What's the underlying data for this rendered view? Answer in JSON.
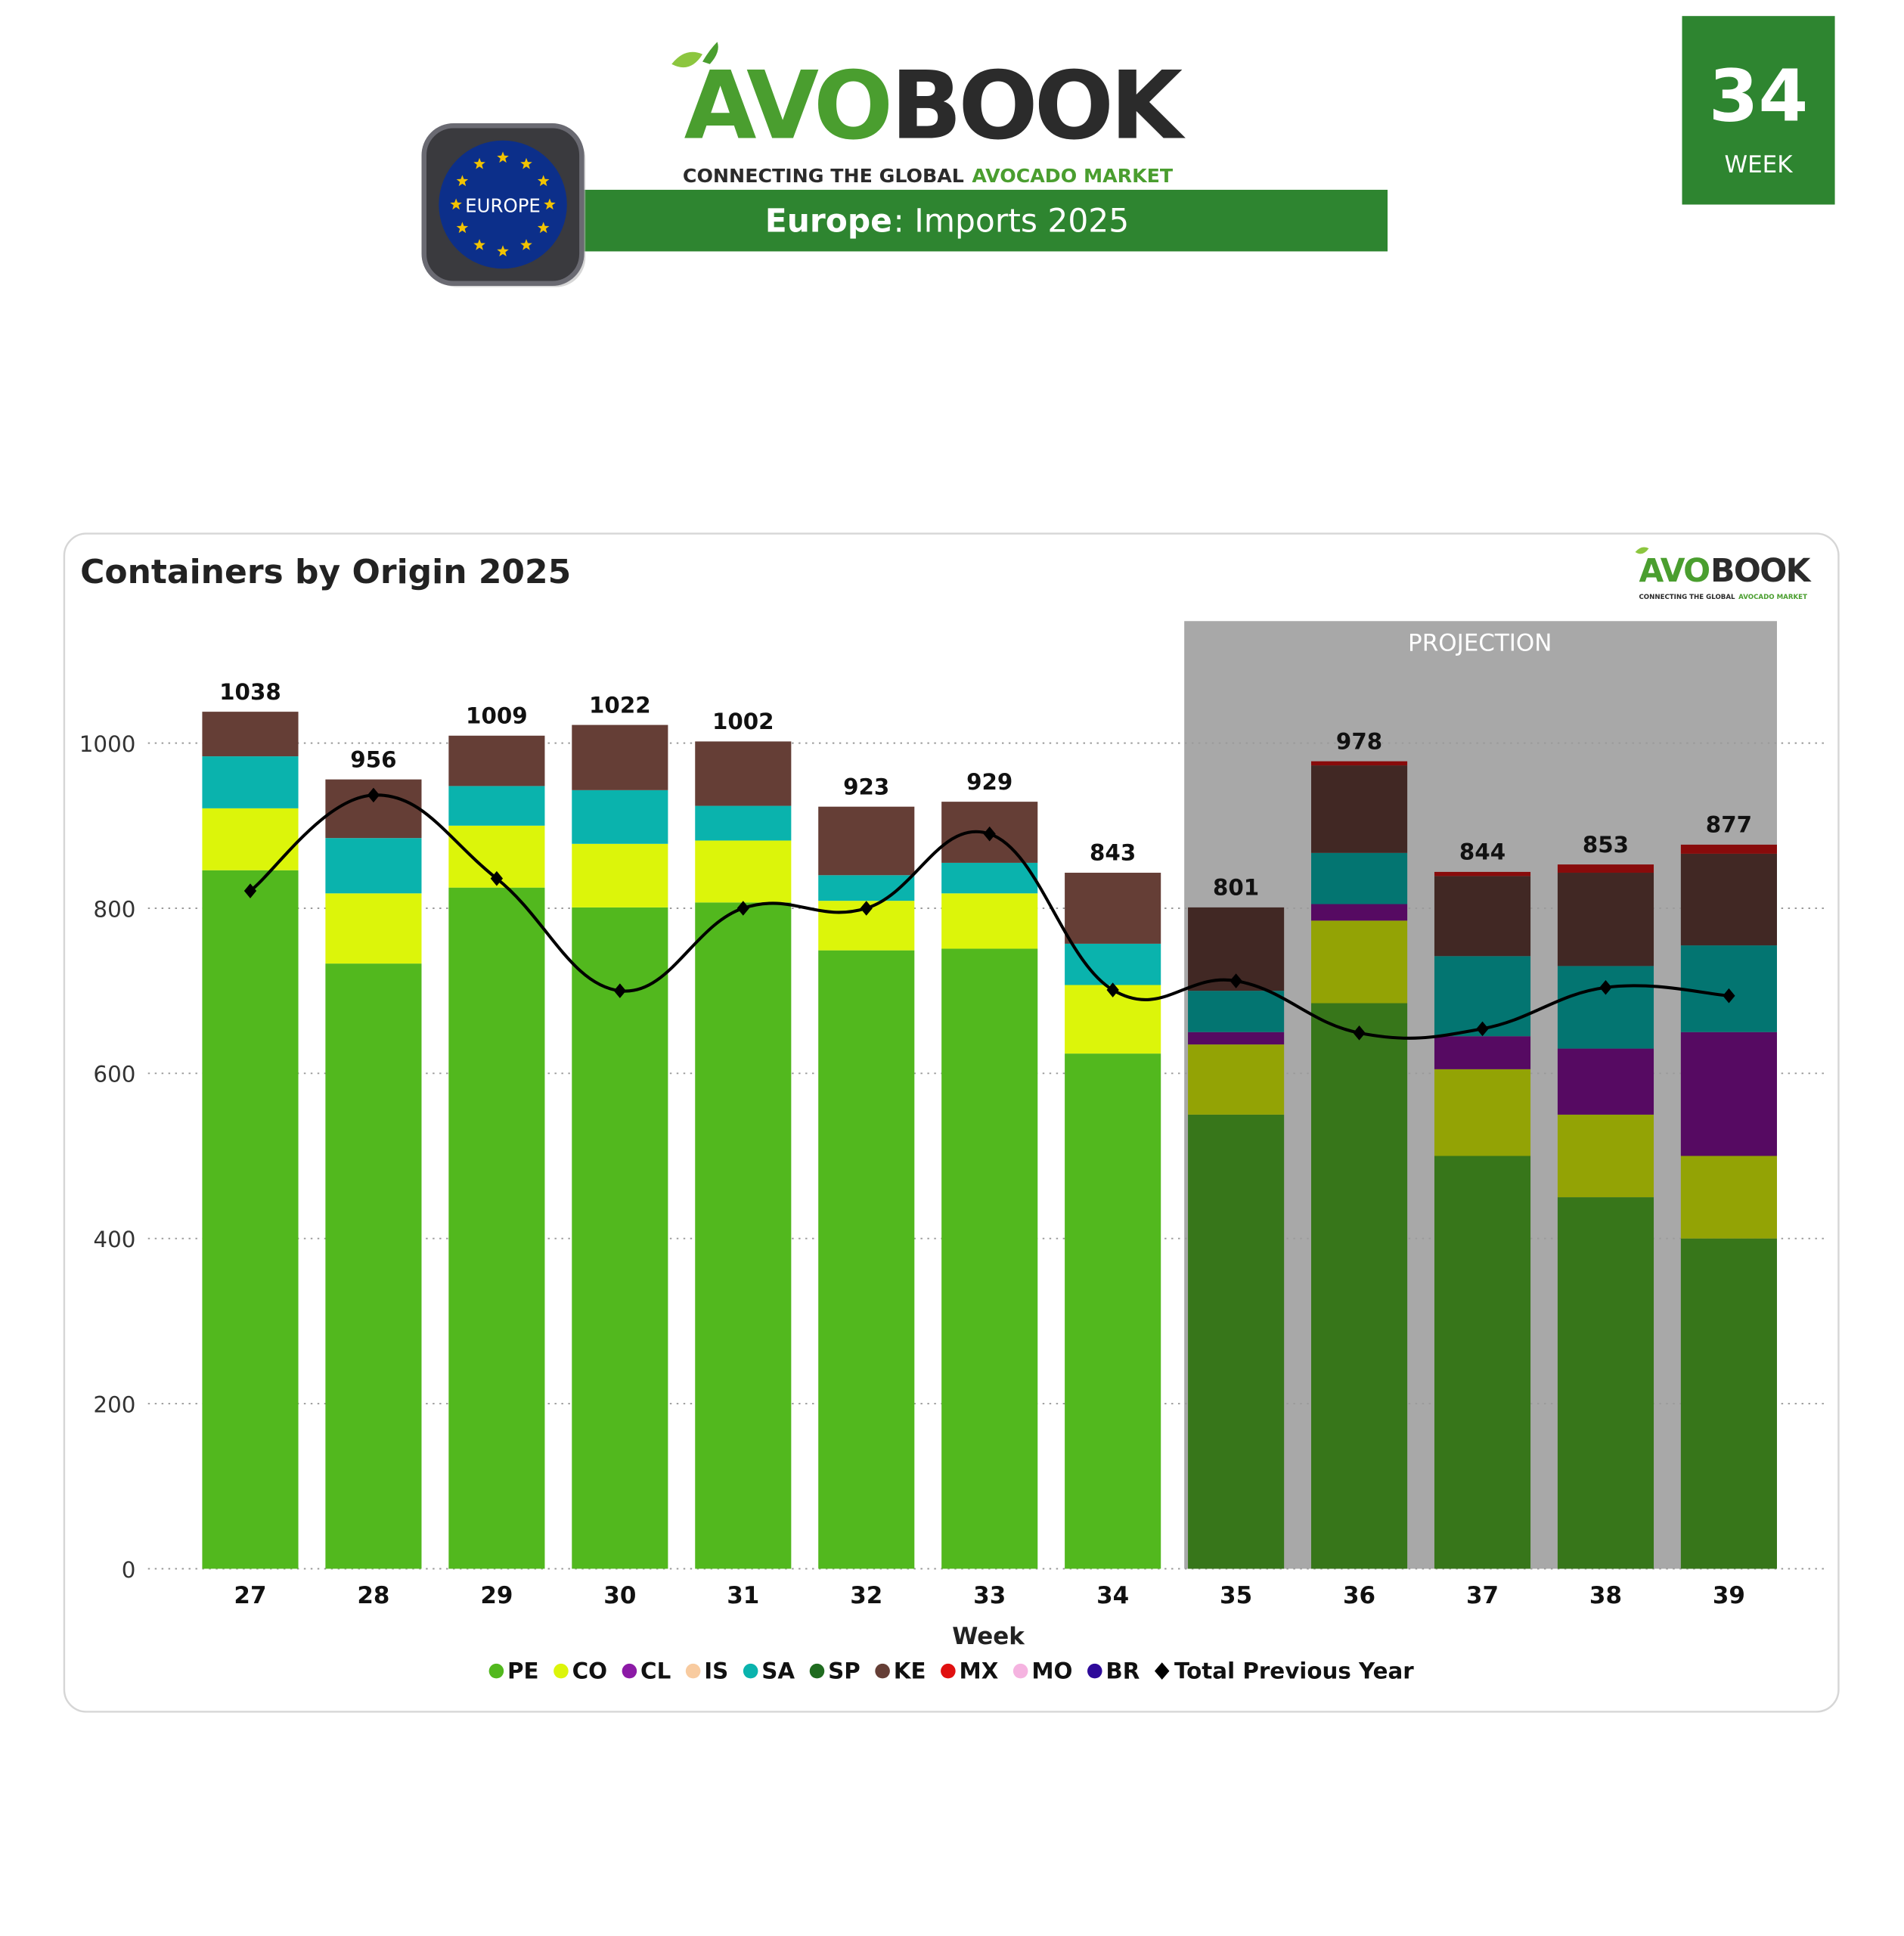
{
  "header": {
    "logo_avo": "AVO",
    "logo_book": "BOOK",
    "tagline_dark": "CONNECTING THE GLOBAL ",
    "tagline_green": "AVOCADO MARKET",
    "banner_region": "Europe",
    "banner_rest": ": Imports 2025",
    "badge_label": "EUROPE",
    "week_number": "34",
    "week_label": "WEEK"
  },
  "colors": {
    "brand_green": "#2e8530",
    "logo_green": "#4a9e2f",
    "logo_dark": "#2b2b2b",
    "eu_blue": "#0c2f8a",
    "eu_star": "#f2c300",
    "projection_bg": "#a8a8a8"
  },
  "chart_data": {
    "type": "bar",
    "stacked": true,
    "title": "Containers by Origin 2025",
    "xlabel": "Week",
    "ylabel": "",
    "ylim": [
      0,
      1100
    ],
    "yticks": [
      0,
      200,
      400,
      600,
      800,
      1000
    ],
    "grid": "horizontal-dotted",
    "legend_placement": "bottom",
    "projection_label": "PROJECTION",
    "projection_categories": [
      "35",
      "36",
      "37",
      "38",
      "39"
    ],
    "categories": [
      "27",
      "28",
      "29",
      "30",
      "31",
      "32",
      "33",
      "34",
      "35",
      "36",
      "37",
      "38",
      "39"
    ],
    "totals": [
      1038,
      956,
      1009,
      1022,
      1002,
      923,
      929,
      843,
      801,
      978,
      844,
      853,
      877
    ],
    "series": [
      {
        "name": "PE",
        "color": "#52b81e",
        "projection_color": "#3b7d18",
        "values": [
          846,
          733,
          825,
          801,
          807,
          749,
          751,
          624,
          0,
          0,
          0,
          0,
          0
        ]
      },
      {
        "name": "SP",
        "color": "#1f6b1f",
        "projection_color": "#37761a",
        "values": [
          0,
          0,
          0,
          0,
          0,
          0,
          0,
          0,
          550,
          685,
          500,
          450,
          400
        ]
      },
      {
        "name": "CO",
        "color": "#dcf50a",
        "projection_color": "#93a305",
        "values": [
          75,
          85,
          75,
          77,
          75,
          60,
          67,
          83,
          85,
          100,
          105,
          100,
          100
        ]
      },
      {
        "name": "CL",
        "color": "#8c1aa6",
        "projection_color": "#560a62",
        "values": [
          0,
          0,
          0,
          0,
          0,
          0,
          0,
          0,
          15,
          20,
          40,
          80,
          150
        ]
      },
      {
        "name": "IS",
        "color": "#f8cba0",
        "projection_color": "#a88a70",
        "values": [
          0,
          0,
          0,
          0,
          0,
          0,
          0,
          0,
          0,
          0,
          0,
          0,
          0
        ]
      },
      {
        "name": "SA",
        "color": "#0ab3ad",
        "projection_color": "#037571",
        "values": [
          63,
          67,
          48,
          65,
          42,
          31,
          37,
          50,
          50,
          62,
          97,
          100,
          105
        ]
      },
      {
        "name": "KE",
        "color": "#653e36",
        "projection_color": "#412824",
        "values": [
          54,
          71,
          61,
          79,
          78,
          83,
          74,
          86,
          101,
          106,
          97,
          113,
          111
        ]
      },
      {
        "name": "MX",
        "color": "#e01010",
        "projection_color": "#880b0b",
        "values": [
          0,
          0,
          0,
          0,
          0,
          0,
          0,
          0,
          0,
          5,
          5,
          10,
          11
        ]
      },
      {
        "name": "MO",
        "color": "#f5b3e0",
        "projection_color": "#a87a98",
        "values": [
          0,
          0,
          0,
          0,
          0,
          0,
          0,
          0,
          0,
          0,
          0,
          0,
          0
        ]
      },
      {
        "name": "BR",
        "color": "#2e0a9a",
        "projection_color": "#1e0868",
        "values": [
          0,
          0,
          0,
          0,
          0,
          0,
          0,
          0,
          0,
          0,
          0,
          0,
          0
        ]
      }
    ],
    "line": {
      "name": "Total Previous Year",
      "color": "#000000",
      "values": [
        821,
        937,
        836,
        700,
        800,
        800,
        890,
        701,
        712,
        649,
        654,
        704,
        694
      ]
    },
    "legend_order": [
      "PE",
      "CO",
      "CL",
      "IS",
      "SA",
      "SP",
      "KE",
      "MX",
      "MO",
      "BR"
    ]
  }
}
